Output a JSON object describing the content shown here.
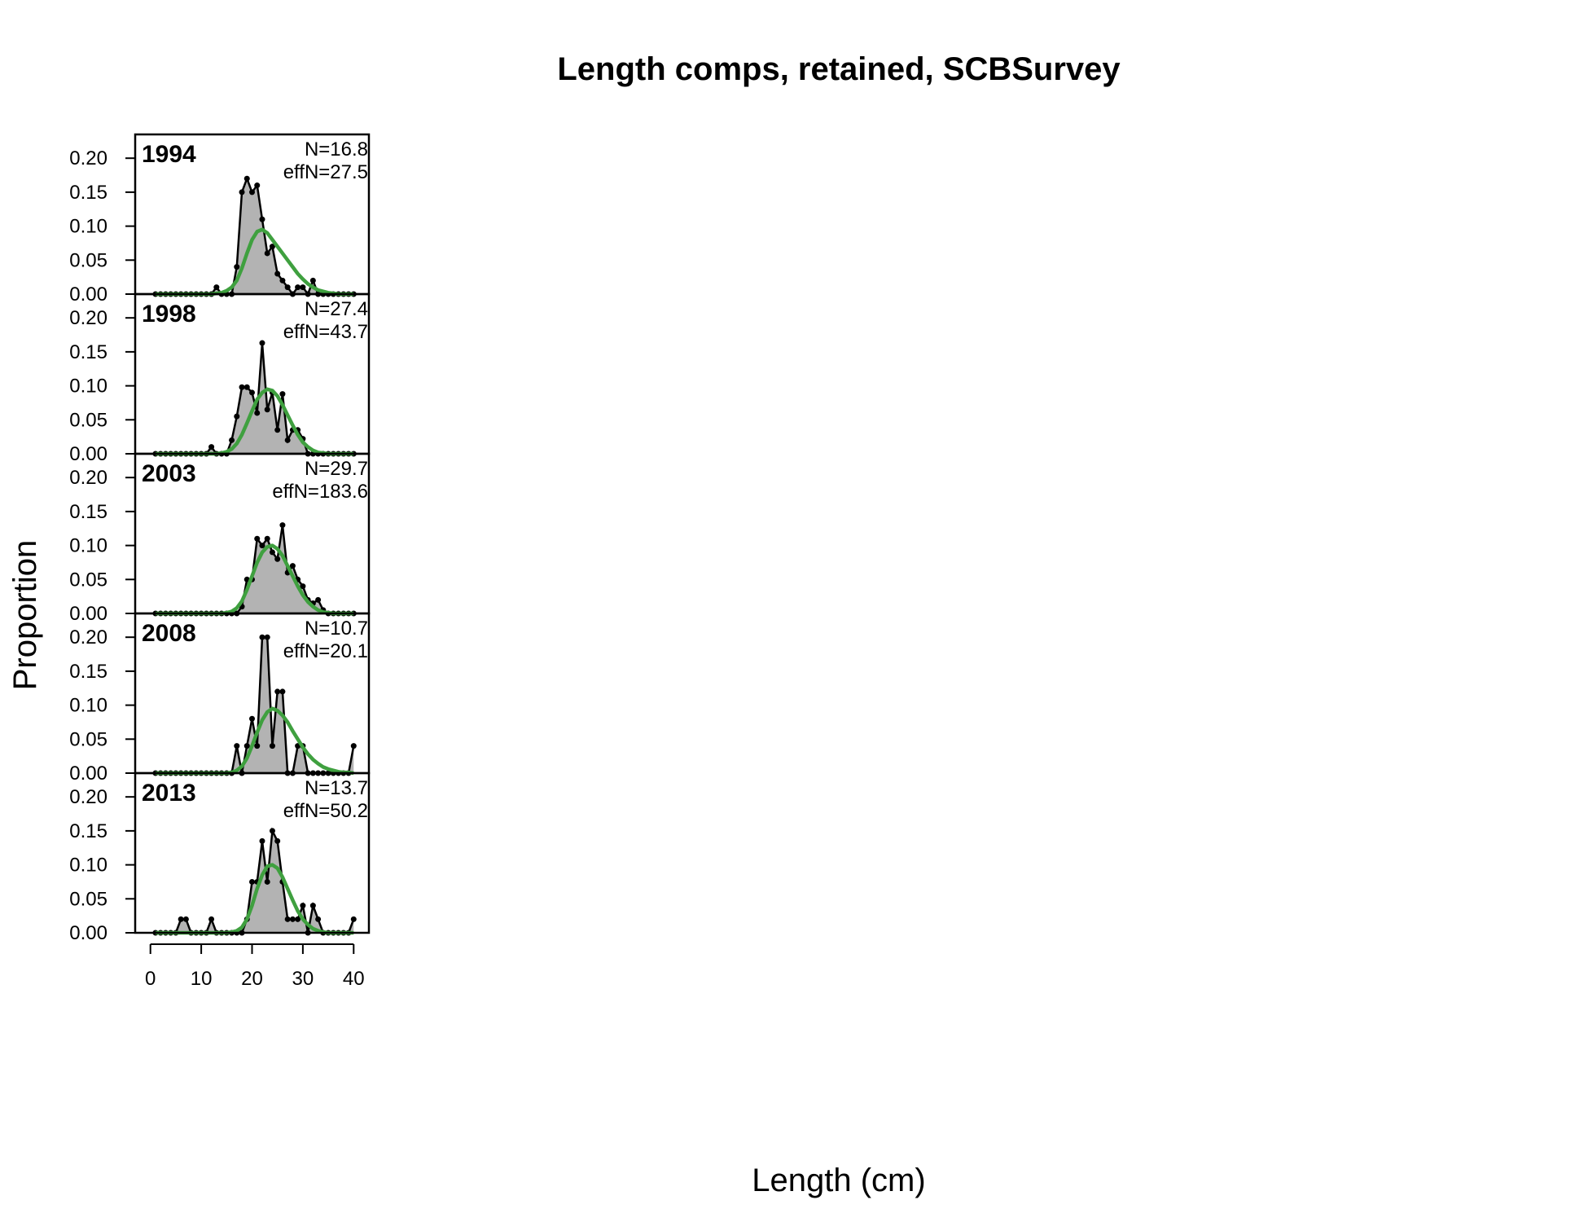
{
  "chart_data": {
    "type": "area",
    "title": "Length comps, retained, SCBSurvey",
    "xlabel": "Length (cm)",
    "ylabel": "Proportion",
    "xlim": [
      -3,
      43
    ],
    "ylim": [
      0,
      0.235
    ],
    "x_ticks": [
      0,
      10,
      20,
      30,
      40
    ],
    "y_ticks": [
      "0.00",
      "0.05",
      "0.10",
      "0.15",
      "0.20"
    ],
    "colors": {
      "observed_fill": "#b3b3b3",
      "observed_line": "#000000",
      "expected_line": "#3fa03f",
      "baseline": "#c8c8c8"
    },
    "x": [
      1,
      2,
      3,
      4,
      5,
      6,
      7,
      8,
      9,
      10,
      11,
      12,
      13,
      14,
      15,
      16,
      17,
      18,
      19,
      20,
      21,
      22,
      23,
      24,
      25,
      26,
      27,
      28,
      29,
      30,
      31,
      32,
      33,
      34,
      35,
      36,
      37,
      38,
      39,
      40
    ],
    "panels": [
      {
        "year": "1994",
        "n_label": "N=16.8",
        "effn_label": "effN=27.5",
        "observed": [
          0,
          0,
          0,
          0,
          0,
          0,
          0,
          0,
          0,
          0,
          0,
          0,
          0.01,
          0,
          0,
          0,
          0.04,
          0.15,
          0.17,
          0.15,
          0.16,
          0.11,
          0.06,
          0.07,
          0.03,
          0.02,
          0.01,
          0,
          0.01,
          0.01,
          0,
          0.02,
          0,
          0,
          0,
          0,
          0,
          0,
          0,
          0
        ],
        "expected": [
          0,
          0,
          0,
          0,
          0,
          0,
          0,
          0,
          0,
          0,
          0,
          0,
          0.001,
          0.002,
          0.005,
          0.01,
          0.02,
          0.038,
          0.06,
          0.08,
          0.092,
          0.095,
          0.09,
          0.08,
          0.07,
          0.06,
          0.05,
          0.04,
          0.03,
          0.022,
          0.015,
          0.01,
          0.006,
          0.004,
          0.002,
          0.001,
          0,
          0,
          0,
          0
        ]
      },
      {
        "year": "1998",
        "n_label": "N=27.4",
        "effn_label": "effN=43.7",
        "observed": [
          0,
          0,
          0,
          0,
          0,
          0,
          0,
          0,
          0,
          0,
          0,
          0.01,
          0,
          0,
          0,
          0.02,
          0.055,
          0.098,
          0.098,
          0.09,
          0.06,
          0.163,
          0.065,
          0.09,
          0.035,
          0.088,
          0.02,
          0.035,
          0.035,
          0.022,
          0,
          0,
          0,
          0,
          0,
          0,
          0,
          0,
          0,
          0
        ],
        "expected": [
          0,
          0,
          0,
          0,
          0,
          0,
          0,
          0,
          0,
          0,
          0,
          0,
          0,
          0.001,
          0.003,
          0.007,
          0.015,
          0.028,
          0.045,
          0.063,
          0.08,
          0.09,
          0.095,
          0.093,
          0.085,
          0.072,
          0.057,
          0.042,
          0.028,
          0.017,
          0.01,
          0.005,
          0.002,
          0.001,
          0,
          0,
          0,
          0,
          0,
          0
        ]
      },
      {
        "year": "2003",
        "n_label": "N=29.7",
        "effn_label": "effN=183.6",
        "observed": [
          0,
          0,
          0,
          0,
          0,
          0,
          0,
          0,
          0,
          0,
          0,
          0,
          0,
          0,
          0,
          0,
          0,
          0.01,
          0.05,
          0.05,
          0.11,
          0.1,
          0.11,
          0.09,
          0.08,
          0.13,
          0.06,
          0.07,
          0.05,
          0.04,
          0.02,
          0.015,
          0.02,
          0.005,
          0,
          0,
          0,
          0,
          0,
          0
        ],
        "expected": [
          0,
          0,
          0,
          0,
          0,
          0,
          0,
          0,
          0,
          0,
          0,
          0,
          0,
          0,
          0.001,
          0.003,
          0.008,
          0.018,
          0.035,
          0.055,
          0.075,
          0.09,
          0.098,
          0.1,
          0.095,
          0.085,
          0.07,
          0.055,
          0.04,
          0.027,
          0.017,
          0.01,
          0.005,
          0.002,
          0.001,
          0,
          0,
          0,
          0,
          0
        ]
      },
      {
        "year": "2008",
        "n_label": "N=10.7",
        "effn_label": "effN=20.1",
        "observed": [
          0,
          0,
          0,
          0,
          0,
          0,
          0,
          0,
          0,
          0,
          0,
          0,
          0,
          0,
          0,
          0,
          0.04,
          0,
          0.04,
          0.08,
          0.04,
          0.2,
          0.2,
          0.04,
          0.12,
          0.12,
          0,
          0,
          0.04,
          0.04,
          0,
          0,
          0,
          0,
          0,
          0,
          0,
          0,
          0,
          0.04
        ],
        "expected": [
          0,
          0,
          0,
          0,
          0,
          0,
          0,
          0,
          0,
          0,
          0,
          0,
          0,
          0,
          0,
          0.001,
          0.004,
          0.01,
          0.022,
          0.04,
          0.06,
          0.078,
          0.09,
          0.095,
          0.092,
          0.085,
          0.075,
          0.062,
          0.05,
          0.038,
          0.028,
          0.02,
          0.014,
          0.009,
          0.006,
          0.004,
          0.002,
          0.001,
          0.001,
          0
        ]
      },
      {
        "year": "2013",
        "n_label": "N=13.7",
        "effn_label": "effN=50.2",
        "observed": [
          0,
          0,
          0,
          0,
          0,
          0.02,
          0.02,
          0,
          0,
          0,
          0,
          0.02,
          0,
          0,
          0,
          0,
          0,
          0,
          0.02,
          0.075,
          0.075,
          0.135,
          0.075,
          0.15,
          0.135,
          0.075,
          0.02,
          0.02,
          0.02,
          0.04,
          0,
          0.04,
          0.02,
          0,
          0,
          0,
          0,
          0,
          0,
          0.02
        ],
        "expected": [
          0,
          0,
          0,
          0,
          0,
          0,
          0,
          0,
          0,
          0,
          0,
          0,
          0,
          0,
          0,
          0.001,
          0.003,
          0.008,
          0.02,
          0.04,
          0.065,
          0.085,
          0.098,
          0.1,
          0.095,
          0.082,
          0.065,
          0.048,
          0.032,
          0.02,
          0.012,
          0.006,
          0.003,
          0.001,
          0,
          0,
          0,
          0,
          0,
          0
        ]
      }
    ]
  }
}
